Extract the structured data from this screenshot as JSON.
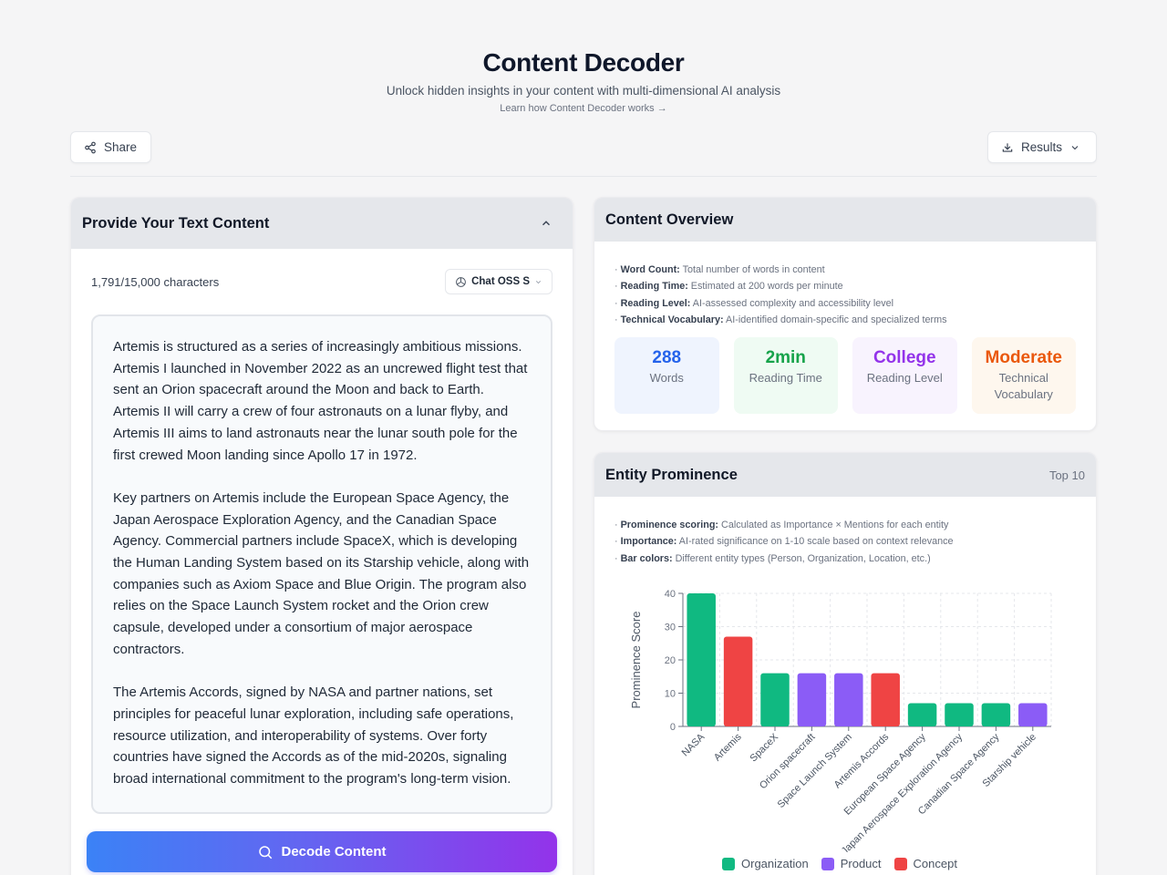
{
  "header": {
    "title": "Content Decoder",
    "subtitle": "Unlock hidden insights in your content with multi-dimensional AI analysis",
    "learn_link": "Learn how Content Decoder works →"
  },
  "toolbar": {
    "share_label": "Share",
    "share_icon": "share-icon",
    "results_label": "Results",
    "results_icon": "download-icon"
  },
  "input_panel": {
    "title": "Provide Your Text Content",
    "char_count": "1,791/15,000 characters",
    "model_label": "Chat OSS S",
    "paragraphs": [
      "Artemis is structured as a series of increasingly ambitious missions. Artemis I launched in November 2022 as an uncrewed flight test that sent an Orion spacecraft around the Moon and back to Earth. Artemis II will carry a crew of four astronauts on a lunar flyby, and Artemis III aims to land astronauts near the lunar south pole for the first crewed Moon landing since Apollo 17 in 1972.",
      "Key partners on Artemis include the European Space Agency, the Japan Aerospace Exploration Agency, and the Canadian Space Agency. Commercial partners include SpaceX, which is developing the Human Landing System based on its Starship vehicle, along with companies such as Axiom Space and Blue Origin. The program also relies on the Space Launch System rocket and the Orion crew capsule, developed under a consortium of major aerospace contractors.",
      "The Artemis Accords, signed by NASA and partner nations, set principles for peaceful lunar exploration, including safe operations, resource utilization, and interoperability of systems. Over forty countries have signed the Accords as of the mid-2020s, signaling broad international commitment to the program's long-term vision."
    ],
    "decode_label": "Decode Content"
  },
  "overview": {
    "title": "Content Overview",
    "notes": [
      {
        "term": "Word Count:",
        "desc": " Total number of words in content"
      },
      {
        "term": "Reading Time:",
        "desc": " Estimated at 200 words per minute"
      },
      {
        "term": "Reading Level:",
        "desc": " AI-assessed complexity and accessibility level"
      },
      {
        "term": "Technical Vocabulary:",
        "desc": " AI-identified domain-specific and specialized terms"
      }
    ],
    "stats": [
      {
        "value": "288",
        "label": "Words",
        "color": "#2563eb",
        "bg": "#eff4fe"
      },
      {
        "value": "2min",
        "label": "Reading Time",
        "color": "#16a34a",
        "bg": "#effbf3"
      },
      {
        "value": "College",
        "label": "Reading Level",
        "color": "#9333ea",
        "bg": "#f8f3fe"
      },
      {
        "value": "Moderate",
        "label": "Technical Vocabulary",
        "color": "#ea580c",
        "bg": "#fef7ee"
      }
    ]
  },
  "entity": {
    "title": "Entity Prominence",
    "top_label": "Top 10",
    "notes": [
      {
        "term": "Prominence scoring:",
        "desc": " Calculated as Importance × Mentions for each entity"
      },
      {
        "term": "Importance:",
        "desc": " AI-rated significance on 1-10 scale based on context relevance"
      },
      {
        "term": "Bar colors:",
        "desc": " Different entity types (Person, Organization, Location, etc.)"
      }
    ],
    "legend": [
      {
        "label": "Organization",
        "color": "#10b981"
      },
      {
        "label": "Product",
        "color": "#8b5cf6"
      },
      {
        "label": "Concept",
        "color": "#ef4444"
      }
    ]
  },
  "chart_data": {
    "type": "bar",
    "title": "Entity Prominence",
    "xlabel": "",
    "ylabel": "Prominence Score",
    "ylim": [
      0,
      40
    ],
    "yticks": [
      0,
      10,
      20,
      30,
      40
    ],
    "grid": true,
    "legend_position": "bottom",
    "categories": [
      "NASA",
      "Artemis",
      "SpaceX",
      "Orion spacecraft",
      "Space Launch System",
      "Artemis Accords",
      "European Space Agency",
      "Japan Aerospace Exploration Agency",
      "Canadian Space Agency",
      "Starship vehicle"
    ],
    "values": [
      40,
      27,
      16,
      16,
      16,
      16,
      7,
      7,
      7,
      7
    ],
    "types": [
      "Organization",
      "Concept",
      "Organization",
      "Product",
      "Product",
      "Concept",
      "Organization",
      "Organization",
      "Organization",
      "Product"
    ],
    "type_colors": {
      "Organization": "#10b981",
      "Product": "#8b5cf6",
      "Concept": "#ef4444"
    }
  }
}
